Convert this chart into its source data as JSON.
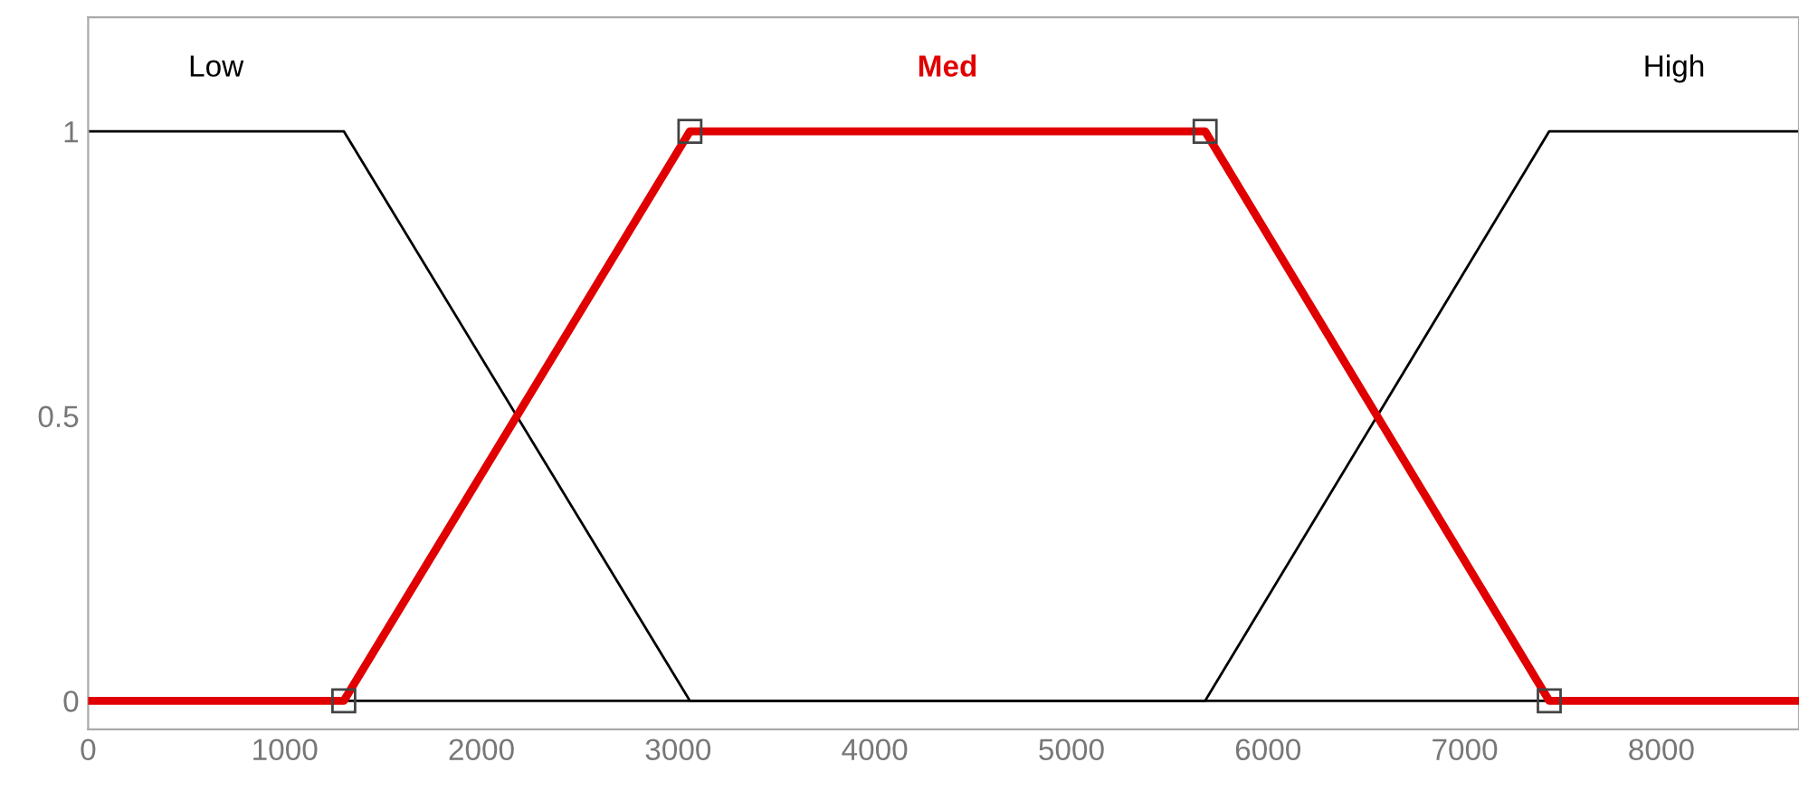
{
  "chart_data": {
    "type": "line",
    "series": [
      {
        "name": "Low",
        "color": "#000000",
        "x": [
          0,
          1300,
          3060,
          8700
        ],
        "values": [
          1,
          1,
          0,
          0
        ],
        "marker": "none"
      },
      {
        "name": "High",
        "color": "#000000",
        "x": [
          0,
          5680,
          7430,
          8700
        ],
        "values": [
          0,
          0,
          1,
          1
        ],
        "marker": "none"
      },
      {
        "name": "Med",
        "color": "#e00000",
        "x": [
          0,
          1300,
          3060,
          5680,
          7430,
          8700
        ],
        "values": [
          0,
          0,
          1,
          1,
          0,
          0
        ],
        "marker": "square"
      }
    ],
    "xlim": [
      0,
      8700
    ],
    "ylim": [
      -0.05,
      1.2
    ],
    "xticks": [
      0,
      1000,
      2000,
      3000,
      4000,
      5000,
      6000,
      7000,
      8000
    ],
    "yticks": [
      0,
      0.5,
      1
    ],
    "grid": false,
    "legend": false,
    "line_style": "solid"
  }
}
